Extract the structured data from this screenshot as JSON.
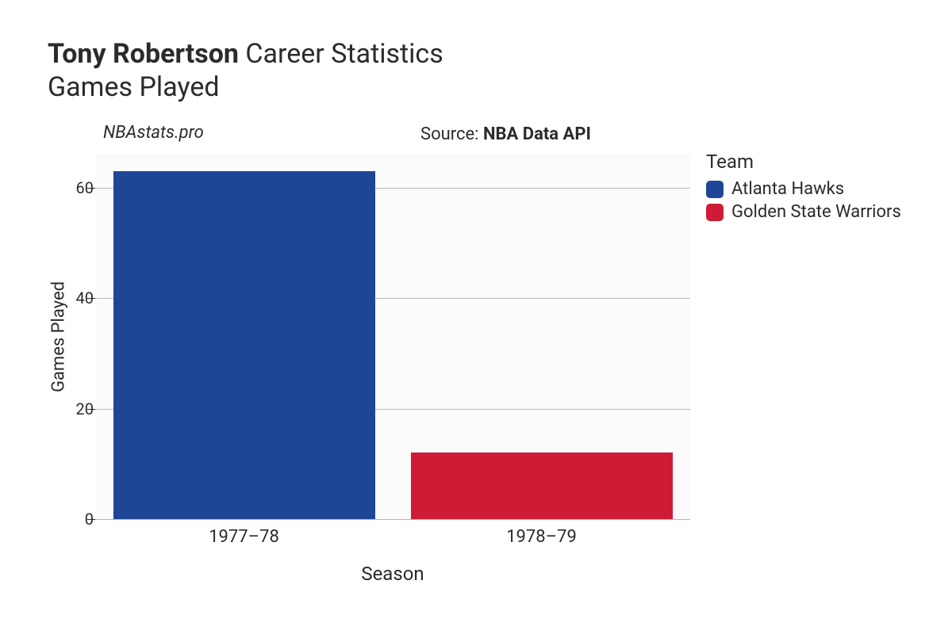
{
  "title": {
    "bold": "Tony Robertson",
    "rest": " Career Statistics",
    "line2": "Games Played",
    "fontsize": 34
  },
  "watermark": {
    "text": "NBAstats.pro",
    "fontsize": 22
  },
  "source": {
    "prefix": "Source: ",
    "name": "NBA Data API",
    "fontsize": 22
  },
  "chart": {
    "type": "bar",
    "background_color": "#fbfbfb",
    "grid_color": "#b7b7b7",
    "ylabel": "Games Played",
    "xlabel": "Season",
    "label_fontsize": 22,
    "tick_fontsize": 20,
    "ylim": [
      0,
      66
    ],
    "yticks": [
      0,
      20,
      40,
      60
    ],
    "categories": [
      "1977–78",
      "1978–79"
    ],
    "values": [
      63,
      12
    ],
    "bar_colors": [
      "#1f4696",
      "#cf1b36"
    ],
    "bar_width": 0.88
  },
  "legend": {
    "title": "Team",
    "items": [
      {
        "label": "Atlanta Hawks",
        "color": "#1f4696"
      },
      {
        "label": "Golden State Warriors",
        "color": "#cf1b36"
      }
    ],
    "fontsize": 22
  }
}
